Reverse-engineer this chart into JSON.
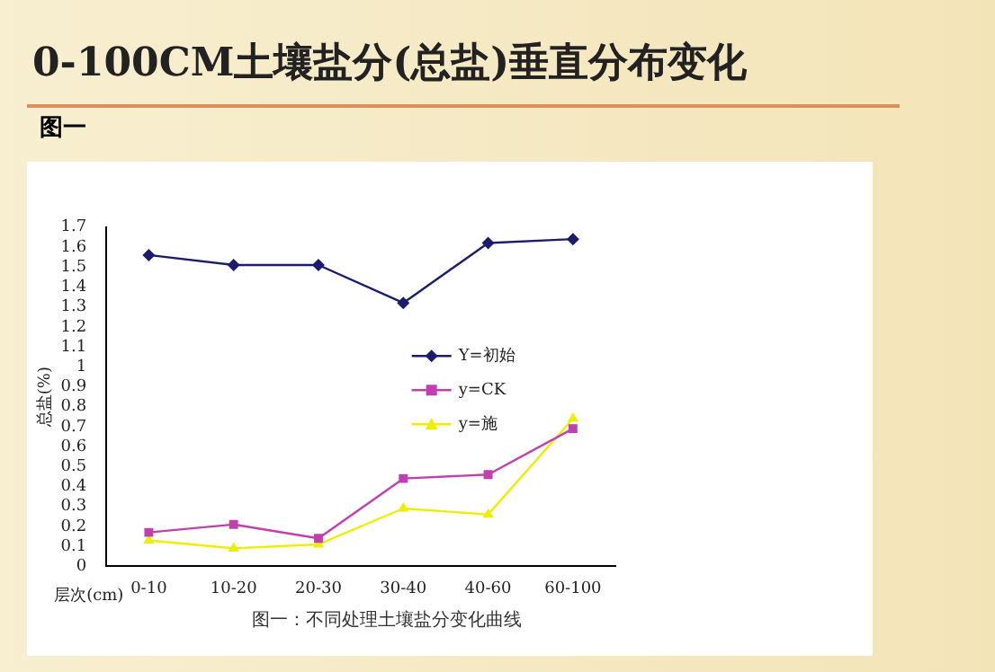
{
  "chart_data": {
    "type": "line",
    "title": "0-100CM土壤盐分(总盐)垂直分布变化",
    "subtitle": "图一",
    "xlabel": "层次(cm)",
    "ylabel": "总盐(%)",
    "categories": [
      "0-10",
      "10-20",
      "20-30",
      "30-40",
      "40-60",
      "60-100"
    ],
    "series": [
      {
        "name": "Y=初始",
        "color": "#1c1c6e",
        "marker": "diamond",
        "values": [
          1.56,
          1.51,
          1.51,
          1.32,
          1.62,
          1.64
        ]
      },
      {
        "name": "y=CK",
        "color": "#c040b0",
        "marker": "square",
        "values": [
          0.17,
          0.21,
          0.14,
          0.44,
          0.46,
          0.69
        ]
      },
      {
        "name": "y=施",
        "color": "#eeee00",
        "marker": "triangle",
        "values": [
          0.13,
          0.09,
          0.11,
          0.29,
          0.26,
          0.74
        ]
      }
    ],
    "ylim": [
      0,
      1.7
    ],
    "yticks": [
      0,
      0.1,
      0.2,
      0.3,
      0.4,
      0.5,
      0.6,
      0.7,
      0.8,
      0.9,
      1,
      1.1,
      1.2,
      1.3,
      1.4,
      1.5,
      1.6,
      1.7
    ],
    "grid": false,
    "legend": "right",
    "line_style": "solid",
    "annotations": [
      "图一：不同处理土壤盐分变化曲线"
    ]
  }
}
